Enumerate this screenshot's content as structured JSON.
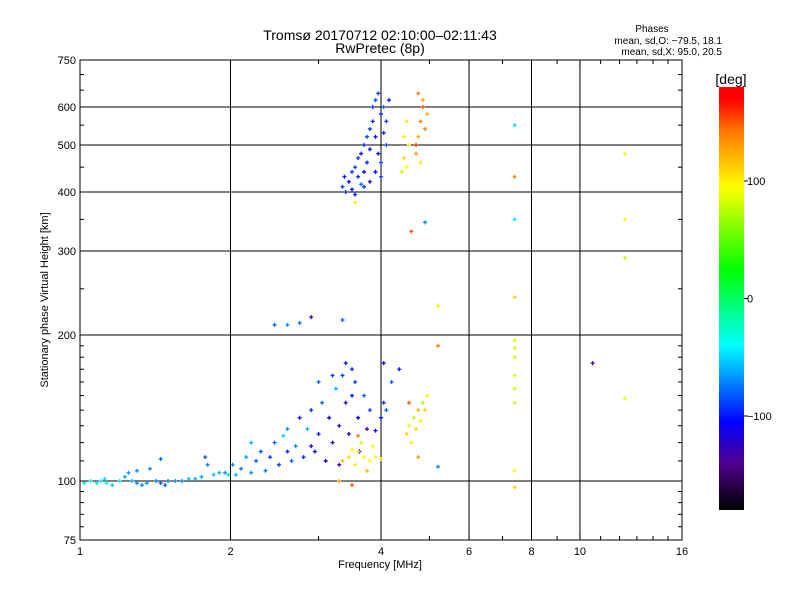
{
  "chart_data": {
    "type": "scatter",
    "title": "Tromsø 20170712 02:10:00–02:11:43",
    "subtitle": "RwPretec (8p)",
    "xlabel": "Frequency [MHz]",
    "ylabel": "Stationary phase Virtual Height [km]",
    "xscale": "log",
    "yscale": "log",
    "xlim": [
      1,
      16
    ],
    "ylim": [
      75,
      750
    ],
    "x_ticks": [
      1,
      2,
      4,
      6,
      8,
      10,
      16
    ],
    "y_ticks": [
      75,
      100,
      200,
      300,
      400,
      500,
      600,
      750
    ],
    "x_grid": [
      2,
      4,
      6,
      8,
      10
    ],
    "y_grid": [
      100,
      200,
      300,
      400,
      500,
      600
    ],
    "grid": true,
    "stats": {
      "header": "Phases",
      "o_line": "mean, sd,O: −79.5, 18.1",
      "x_line": "mean, sd,X:  95.0, 20.5"
    },
    "colorbar": {
      "label": "[deg]",
      "ticks": [
        100,
        0,
        -100
      ],
      "range": [
        -180,
        180
      ],
      "stops": [
        [
          -180,
          "#000000"
        ],
        [
          -140,
          "#50008f"
        ],
        [
          -105,
          "#0000ff"
        ],
        [
          -40,
          "#00ffff"
        ],
        [
          25,
          "#00ff00"
        ],
        [
          95,
          "#ffff00"
        ],
        [
          140,
          "#ff8000"
        ],
        [
          170,
          "#ff0000"
        ],
        [
          180,
          "#ff0000"
        ]
      ]
    },
    "point_fields": [
      "frequency_MHz",
      "height_km",
      "phase_deg"
    ],
    "points": [
      [
        1.02,
        99,
        -45
      ],
      [
        1.05,
        100,
        -45
      ],
      [
        1.08,
        99,
        -50
      ],
      [
        1.1,
        100,
        -45
      ],
      [
        1.13,
        99,
        -45
      ],
      [
        1.16,
        98,
        -55
      ],
      [
        1.2,
        100,
        -45
      ],
      [
        1.23,
        102,
        -60
      ],
      [
        1.25,
        104,
        -65
      ],
      [
        1.27,
        100,
        -60
      ],
      [
        1.3,
        99,
        -70
      ],
      [
        1.33,
        98,
        -70
      ],
      [
        1.36,
        99,
        -65
      ],
      [
        1.38,
        106,
        -70
      ],
      [
        1.42,
        100,
        -75
      ],
      [
        1.45,
        99,
        -80
      ],
      [
        1.48,
        98,
        -80
      ],
      [
        1.5,
        100,
        -75
      ],
      [
        1.55,
        100,
        -70
      ],
      [
        1.6,
        100,
        -70
      ],
      [
        1.65,
        101,
        -60
      ],
      [
        1.7,
        101,
        -60
      ],
      [
        1.75,
        102,
        -60
      ],
      [
        1.78,
        112,
        -85
      ],
      [
        1.8,
        108,
        -70
      ],
      [
        1.85,
        103,
        -55
      ],
      [
        1.9,
        104,
        -60
      ],
      [
        1.95,
        104,
        -65
      ],
      [
        1.98,
        103,
        -50
      ],
      [
        1.45,
        111,
        -80
      ],
      [
        1.3,
        105,
        -70
      ],
      [
        1.12,
        101,
        -50
      ],
      [
        2.02,
        108,
        -70
      ],
      [
        2.05,
        103,
        -60
      ],
      [
        2.1,
        106,
        -75
      ],
      [
        2.15,
        112,
        -65
      ],
      [
        2.2,
        104,
        -70
      ],
      [
        2.25,
        110,
        -80
      ],
      [
        2.3,
        115,
        -85
      ],
      [
        2.35,
        105,
        -75
      ],
      [
        2.4,
        112,
        -90
      ],
      [
        2.45,
        120,
        -80
      ],
      [
        2.5,
        108,
        -90
      ],
      [
        2.55,
        124,
        -50
      ],
      [
        2.6,
        115,
        -95
      ],
      [
        2.65,
        110,
        -80
      ],
      [
        2.7,
        118,
        -70
      ],
      [
        2.75,
        135,
        -100
      ],
      [
        2.8,
        112,
        -95
      ],
      [
        2.85,
        128,
        -60
      ],
      [
        2.9,
        140,
        -95
      ],
      [
        2.95,
        115,
        -110
      ],
      [
        3.0,
        125,
        -100
      ],
      [
        3.05,
        145,
        -80
      ],
      [
        3.1,
        110,
        -110
      ],
      [
        3.15,
        135,
        -105
      ],
      [
        3.2,
        120,
        -120
      ],
      [
        3.25,
        155,
        -60
      ],
      [
        3.3,
        108,
        -130
      ],
      [
        3.35,
        165,
        -90
      ],
      [
        3.4,
        145,
        -110
      ],
      [
        3.45,
        125,
        -120
      ],
      [
        3.5,
        170,
        -95
      ],
      [
        3.55,
        160,
        -90
      ],
      [
        3.6,
        135,
        -105
      ],
      [
        3.62,
        115,
        -115
      ],
      [
        3.5,
        150,
        -100
      ],
      [
        3.4,
        175,
        -100
      ],
      [
        3.3,
        130,
        -115
      ],
      [
        3.7,
        150,
        -80
      ],
      [
        3.75,
        128,
        -130
      ],
      [
        3.8,
        140,
        -90
      ],
      [
        3.9,
        127,
        -110
      ],
      [
        4.0,
        135,
        -100
      ],
      [
        4.05,
        145,
        -95
      ],
      [
        4.1,
        140,
        -80
      ],
      [
        2.9,
        118,
        -120
      ],
      [
        2.6,
        128,
        -70
      ],
      [
        2.2,
        120,
        -60
      ],
      [
        3.0,
        160,
        -80
      ],
      [
        3.2,
        165,
        -90
      ],
      [
        3.3,
        100,
        130
      ],
      [
        3.45,
        112,
        110
      ],
      [
        3.55,
        108,
        100
      ],
      [
        3.6,
        115,
        90
      ],
      [
        3.7,
        112,
        100
      ],
      [
        3.8,
        110,
        95
      ],
      [
        3.85,
        118,
        90
      ],
      [
        3.9,
        112,
        100
      ],
      [
        4.0,
        111,
        110
      ],
      [
        3.65,
        120,
        80
      ],
      [
        3.75,
        105,
        120
      ],
      [
        3.6,
        124,
        140
      ],
      [
        3.35,
        110,
        120
      ],
      [
        3.5,
        98,
        150
      ],
      [
        3.5,
        116,
        100
      ],
      [
        4.5,
        125,
        110
      ],
      [
        4.55,
        130,
        100
      ],
      [
        4.6,
        120,
        90
      ],
      [
        4.65,
        135,
        80
      ],
      [
        4.7,
        128,
        110
      ],
      [
        4.75,
        140,
        120
      ],
      [
        4.8,
        133,
        100
      ],
      [
        4.85,
        145,
        70
      ],
      [
        4.9,
        140,
        110
      ],
      [
        4.95,
        150,
        90
      ],
      [
        4.55,
        145,
        150
      ],
      [
        4.75,
        112,
        130
      ],
      [
        4.2,
        160,
        -80
      ],
      [
        4.05,
        175,
        -110
      ],
      [
        4.35,
        170,
        -100
      ],
      [
        3.35,
        410,
        -90
      ],
      [
        3.38,
        430,
        -100
      ],
      [
        3.4,
        400,
        -95
      ],
      [
        3.45,
        420,
        -110
      ],
      [
        3.5,
        440,
        -90
      ],
      [
        3.5,
        405,
        -100
      ],
      [
        3.55,
        450,
        -85
      ],
      [
        3.6,
        430,
        -95
      ],
      [
        3.6,
        470,
        -90
      ],
      [
        3.65,
        480,
        -100
      ],
      [
        3.7,
        500,
        -95
      ],
      [
        3.7,
        440,
        -110
      ],
      [
        3.75,
        520,
        -85
      ],
      [
        3.75,
        460,
        -95
      ],
      [
        3.8,
        540,
        -90
      ],
      [
        3.8,
        490,
        -100
      ],
      [
        3.85,
        560,
        -95
      ],
      [
        3.85,
        600,
        -90
      ],
      [
        3.9,
        620,
        -85
      ],
      [
        3.9,
        520,
        -100
      ],
      [
        3.95,
        640,
        -90
      ],
      [
        3.95,
        480,
        -110
      ],
      [
        4.0,
        580,
        -95
      ],
      [
        4.0,
        430,
        -90
      ],
      [
        4.05,
        600,
        -80
      ],
      [
        4.05,
        530,
        -95
      ],
      [
        4.1,
        560,
        -90
      ],
      [
        4.1,
        500,
        -85
      ],
      [
        4.15,
        620,
        -100
      ],
      [
        4.0,
        460,
        -85
      ],
      [
        3.9,
        440,
        -110
      ],
      [
        3.8,
        420,
        -120
      ],
      [
        3.7,
        410,
        -90
      ],
      [
        3.55,
        395,
        -95
      ],
      [
        3.65,
        415,
        -80
      ],
      [
        4.45,
        470,
        110
      ],
      [
        4.45,
        520,
        100
      ],
      [
        4.5,
        560,
        105
      ],
      [
        4.5,
        450,
        95
      ],
      [
        4.55,
        500,
        100
      ],
      [
        4.7,
        480,
        130
      ],
      [
        4.75,
        520,
        120
      ],
      [
        4.8,
        560,
        140
      ],
      [
        4.85,
        600,
        150
      ],
      [
        4.85,
        620,
        130
      ],
      [
        4.9,
        540,
        140
      ],
      [
        4.95,
        580,
        120
      ],
      [
        4.75,
        640,
        140
      ],
      [
        4.7,
        500,
        160
      ],
      [
        4.8,
        460,
        100
      ],
      [
        4.4,
        440,
        80
      ],
      [
        3.55,
        380,
        100
      ],
      [
        7.4,
        550,
        -50
      ],
      [
        7.4,
        430,
        140
      ],
      [
        7.4,
        350,
        -45
      ],
      [
        7.4,
        240,
        110
      ],
      [
        7.4,
        195,
        85
      ],
      [
        7.4,
        188,
        85
      ],
      [
        7.4,
        180,
        80
      ],
      [
        7.4,
        165,
        85
      ],
      [
        7.4,
        155,
        85
      ],
      [
        7.4,
        145,
        80
      ],
      [
        7.4,
        105,
        100
      ],
      [
        7.4,
        97,
        110
      ],
      [
        12.3,
        480,
        100
      ],
      [
        12.3,
        350,
        100
      ],
      [
        12.3,
        290,
        80
      ],
      [
        12.3,
        148,
        90
      ],
      [
        10.6,
        175,
        -130
      ],
      [
        5.2,
        230,
        100
      ],
      [
        5.2,
        190,
        140
      ],
      [
        4.6,
        330,
        150
      ],
      [
        4.9,
        345,
        -70
      ],
      [
        5.2,
        107,
        -70
      ],
      [
        2.45,
        210,
        -80
      ],
      [
        2.6,
        210,
        -70
      ],
      [
        2.75,
        212,
        -75
      ],
      [
        2.9,
        218,
        -130
      ],
      [
        3.35,
        215,
        -80
      ]
    ]
  }
}
